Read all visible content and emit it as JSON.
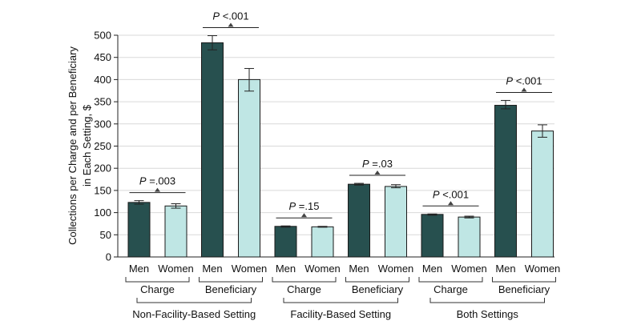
{
  "chart_data": {
    "type": "bar",
    "ylabel_lines": [
      "Collections per Charge and per Beneficiary",
      "in Each Setting, $"
    ],
    "ylim": [
      0,
      500
    ],
    "yticks": [
      "0",
      "50",
      "100",
      "150",
      "200",
      "250",
      "300",
      "350",
      "400",
      "450",
      "500"
    ],
    "ytick_values": [
      0,
      50,
      100,
      150,
      200,
      250,
      300,
      350,
      400,
      450,
      500
    ],
    "colors": {
      "men": "#27504f",
      "women": "#bfe6e4",
      "stroke": "#1a1a1a",
      "grid": "#d9d9d9"
    },
    "settings": [
      {
        "label": "Non-Facility-Based Setting",
        "groups": [
          {
            "label": "Charge",
            "p_label": "P",
            "p_value": " =.003",
            "bars": [
              {
                "label": "Men",
                "series": "men",
                "value": 123,
                "err_low": 119,
                "err_high": 127
              },
              {
                "label": "Women",
                "series": "women",
                "value": 115,
                "err_low": 110,
                "err_high": 120
              }
            ]
          },
          {
            "label": "Beneficiary",
            "p_label": "P",
            "p_value": " <.001",
            "bars": [
              {
                "label": "Men",
                "series": "men",
                "value": 483,
                "err_low": 467,
                "err_high": 499
              },
              {
                "label": "Women",
                "series": "women",
                "value": 400,
                "err_low": 374,
                "err_high": 425
              }
            ]
          }
        ]
      },
      {
        "label": "Facility-Based Setting",
        "groups": [
          {
            "label": "Charge",
            "p_label": "P",
            "p_value": " =.15",
            "bars": [
              {
                "label": "Men",
                "series": "men",
                "value": 69,
                "err_low": 67,
                "err_high": 70
              },
              {
                "label": "Women",
                "series": "women",
                "value": 68,
                "err_low": 67,
                "err_high": 69
              }
            ]
          },
          {
            "label": "Beneficiary",
            "p_label": "P",
            "p_value": " =.03",
            "bars": [
              {
                "label": "Men",
                "series": "men",
                "value": 164,
                "err_low": 162,
                "err_high": 166
              },
              {
                "label": "Women",
                "series": "women",
                "value": 159,
                "err_low": 156,
                "err_high": 163
              }
            ]
          }
        ]
      },
      {
        "label": "Both Settings",
        "groups": [
          {
            "label": "Charge",
            "p_label": "P",
            "p_value": " <.001",
            "bars": [
              {
                "label": "Men",
                "series": "men",
                "value": 96,
                "err_low": 94,
                "err_high": 97
              },
              {
                "label": "Women",
                "series": "women",
                "value": 90,
                "err_low": 88,
                "err_high": 92
              }
            ]
          },
          {
            "label": "Beneficiary",
            "p_label": "P",
            "p_value": " <.001",
            "bars": [
              {
                "label": "Men",
                "series": "men",
                "value": 342,
                "err_low": 334,
                "err_high": 353
              },
              {
                "label": "Women",
                "series": "women",
                "value": 284,
                "err_low": 270,
                "err_high": 298
              }
            ]
          }
        ]
      }
    ]
  }
}
